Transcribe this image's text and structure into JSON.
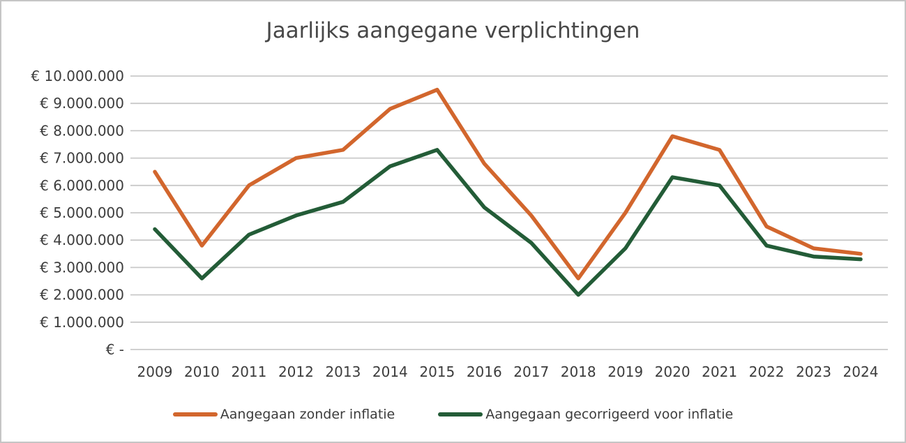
{
  "chart_data": {
    "type": "line",
    "title": "Jaarlijks aangegane verplichtingen",
    "categories": [
      "2009",
      "2010",
      "2011",
      "2012",
      "2013",
      "2014",
      "2015",
      "2016",
      "2017",
      "2018",
      "2019",
      "2020",
      "2021",
      "2022",
      "2023",
      "2024"
    ],
    "series": [
      {
        "name": "Aangegaan zonder inflatie",
        "color": "#d2662d",
        "values": [
          6500000,
          3800000,
          6000000,
          7000000,
          7300000,
          8800000,
          9500000,
          6800000,
          4900000,
          2600000,
          5000000,
          7800000,
          7300000,
          4500000,
          3700000,
          3500000
        ]
      },
      {
        "name": "Aangegaan gecorrigeerd voor inflatie",
        "color": "#235c37",
        "values": [
          4400000,
          2600000,
          4200000,
          4900000,
          5400000,
          6700000,
          7300000,
          5200000,
          3900000,
          2000000,
          3700000,
          6300000,
          6000000,
          3800000,
          3400000,
          3300000
        ]
      }
    ],
    "y_axis": {
      "min": 0,
      "max": 10000000,
      "step": 1000000,
      "tick_labels_top_to_bottom": [
        "€ 10.000.000",
        "€ 9.000.000",
        "€ 8.000.000",
        "€ 7.000.000",
        "€ 6.000.000",
        "€ 5.000.000",
        "€ 4.000.000",
        "€ 3.000.000",
        "€ 2.000.000",
        "€ 1.000.000",
        "€ -"
      ]
    },
    "grid": true,
    "legend_position": "bottom"
  },
  "style": {
    "grid_color": "#c9c9c9",
    "text_color": "#3c3c3c",
    "background": "#ffffff",
    "border_color": "#c5c5c5"
  }
}
